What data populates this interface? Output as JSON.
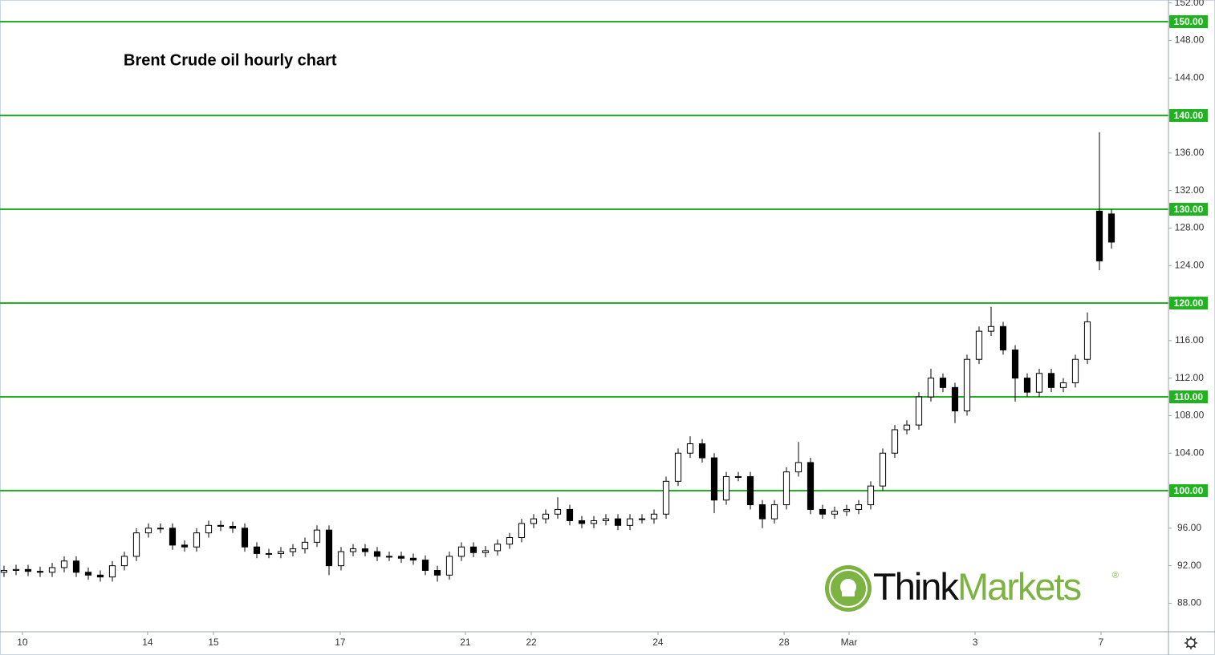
{
  "chart_data": {
    "type": "candlestick",
    "title": "Brent Crude oil hourly chart",
    "up_color": "#ffffff",
    "down_color": "#000000",
    "level_color": "#1fb41f",
    "x": [
      0,
      1,
      2,
      3,
      4,
      5,
      6,
      7,
      8,
      9,
      10,
      11,
      12,
      13,
      14,
      15,
      16,
      17,
      18,
      19,
      20,
      21,
      22,
      23,
      24,
      25,
      26,
      27,
      28,
      29,
      30,
      31,
      32,
      33,
      34,
      35,
      36,
      37,
      38,
      39,
      40,
      41,
      42,
      43,
      44,
      45,
      46,
      47,
      48,
      49,
      50,
      51,
      52,
      53,
      54,
      55,
      56,
      57,
      58,
      59,
      60,
      61,
      62,
      63,
      64,
      65,
      66,
      67,
      68,
      69,
      70,
      71,
      72,
      73,
      74,
      75,
      76,
      77,
      78,
      79,
      80,
      81,
      82,
      83,
      84,
      85,
      86,
      87,
      88,
      89,
      90,
      91,
      92
    ],
    "open": [
      91.3,
      91.5,
      91.6,
      91.4,
      91.3,
      91.8,
      92.5,
      91.3,
      91.0,
      90.8,
      92.0,
      93.0,
      95.5,
      96.0,
      96.0,
      94.2,
      94.0,
      95.5,
      96.3,
      96.2,
      96.0,
      94.0,
      93.3,
      93.3,
      93.5,
      93.8,
      94.5,
      95.8,
      92.0,
      93.5,
      93.8,
      93.5,
      93.0,
      93.0,
      92.8,
      92.6,
      91.5,
      91.0,
      93.0,
      94.0,
      93.4,
      93.6,
      94.3,
      95.0,
      96.5,
      97.0,
      97.5,
      98.0,
      96.8,
      96.5,
      96.8,
      97.0,
      96.3,
      97.0,
      97.0,
      97.5,
      101.0,
      104.0,
      105.0,
      103.5,
      99.0,
      101.5,
      101.5,
      98.5,
      97.0,
      98.5,
      102.0,
      103.0,
      98.0,
      97.5,
      97.8,
      98.0,
      98.5,
      100.5,
      104.0,
      106.5,
      107.0,
      110.0,
      112.0,
      111.0,
      108.5,
      114.0,
      117.0,
      117.5,
      115.0,
      112.0,
      110.5,
      112.5,
      111.0,
      111.5,
      114.0,
      129.8,
      129.5
    ],
    "high": [
      92.0,
      92.1,
      92.1,
      91.9,
      92.3,
      93.0,
      93.0,
      91.8,
      91.5,
      92.5,
      93.5,
      96.0,
      96.5,
      96.5,
      96.5,
      94.7,
      96.0,
      96.8,
      96.8,
      96.7,
      96.5,
      94.5,
      93.8,
      94.0,
      94.3,
      95.0,
      96.3,
      96.3,
      94.0,
      94.3,
      94.3,
      94.0,
      93.5,
      93.5,
      93.3,
      93.1,
      92.0,
      93.5,
      94.5,
      94.5,
      94.1,
      94.8,
      95.5,
      97.0,
      97.5,
      98.0,
      99.3,
      98.5,
      97.3,
      97.3,
      97.5,
      97.5,
      97.5,
      97.5,
      98.0,
      101.5,
      104.5,
      105.8,
      105.5,
      104.0,
      102.0,
      102.0,
      102.0,
      99.0,
      99.0,
      102.5,
      105.2,
      103.5,
      98.5,
      98.3,
      98.5,
      99.0,
      101.0,
      104.5,
      107.0,
      107.5,
      110.5,
      113.0,
      112.5,
      111.5,
      114.5,
      117.5,
      119.6,
      118.0,
      115.5,
      112.5,
      113.0,
      113.0,
      112.0,
      114.5,
      119.0,
      138.2,
      130.0
    ],
    "low": [
      90.8,
      91.0,
      90.9,
      90.8,
      90.8,
      91.3,
      90.8,
      90.5,
      90.3,
      90.3,
      91.5,
      92.5,
      95.0,
      95.5,
      93.7,
      93.5,
      93.5,
      95.0,
      95.7,
      95.5,
      93.5,
      92.8,
      92.8,
      92.8,
      93.0,
      93.3,
      94.0,
      91.0,
      91.5,
      93.0,
      93.0,
      92.5,
      92.5,
      92.3,
      92.1,
      91.0,
      90.3,
      90.5,
      92.5,
      92.9,
      92.9,
      93.1,
      93.8,
      94.5,
      96.0,
      96.5,
      97.0,
      96.3,
      96.0,
      96.0,
      96.3,
      95.8,
      95.8,
      96.5,
      96.5,
      97.0,
      100.5,
      103.5,
      103.0,
      97.6,
      98.5,
      101.0,
      98.0,
      96.0,
      96.5,
      98.0,
      101.5,
      97.5,
      97.0,
      97.0,
      97.3,
      97.5,
      98.0,
      100.0,
      103.5,
      106.0,
      106.5,
      109.5,
      110.5,
      107.2,
      108.0,
      113.5,
      116.5,
      114.5,
      109.5,
      110.0,
      110.0,
      110.5,
      110.5,
      111.0,
      113.5,
      123.5,
      125.8
    ],
    "close": [
      91.5,
      91.6,
      91.4,
      91.3,
      91.8,
      92.5,
      91.3,
      91.0,
      90.8,
      92.0,
      93.0,
      95.5,
      96.0,
      96.0,
      94.2,
      94.0,
      95.5,
      96.3,
      96.2,
      96.0,
      94.0,
      93.3,
      93.3,
      93.5,
      93.8,
      94.5,
      95.8,
      92.0,
      93.5,
      93.8,
      93.5,
      93.0,
      93.0,
      92.8,
      92.6,
      91.5,
      91.0,
      93.0,
      94.0,
      93.4,
      93.6,
      94.3,
      95.0,
      96.5,
      97.0,
      97.5,
      98.0,
      96.8,
      96.5,
      96.8,
      97.0,
      96.3,
      97.0,
      97.0,
      97.5,
      101.0,
      104.0,
      105.0,
      103.5,
      99.0,
      101.5,
      101.5,
      98.5,
      97.0,
      98.5,
      102.0,
      103.0,
      98.0,
      97.5,
      97.8,
      98.0,
      98.5,
      100.5,
      104.0,
      106.5,
      107.0,
      110.0,
      112.0,
      111.0,
      108.5,
      114.0,
      117.0,
      117.5,
      115.0,
      112.0,
      110.5,
      112.5,
      111.0,
      111.5,
      114.0,
      118.0,
      124.5,
      126.5
    ],
    "xlim": [
      -0.333,
      96.667
    ],
    "xticks": [
      {
        "value": 1.53,
        "label": "10"
      },
      {
        "value": 11.93,
        "label": "14"
      },
      {
        "value": 17.4,
        "label": "15"
      },
      {
        "value": 27.93,
        "label": "17"
      },
      {
        "value": 38.33,
        "label": "21"
      },
      {
        "value": 43.8,
        "label": "22"
      },
      {
        "value": 54.33,
        "label": "24"
      },
      {
        "value": 64.8,
        "label": "28"
      },
      {
        "value": 70.2,
        "label": "Mar"
      },
      {
        "value": 80.67,
        "label": "3"
      },
      {
        "value": 91.13,
        "label": "7"
      }
    ],
    "ylim": [
      84.96,
      152.31
    ],
    "yticks": [
      {
        "value": 88,
        "label": "88.00"
      },
      {
        "value": 92,
        "label": "92.00"
      },
      {
        "value": 96,
        "label": "96.00"
      },
      {
        "value": 104,
        "label": "104.00"
      },
      {
        "value": 108,
        "label": "108.00"
      },
      {
        "value": 112,
        "label": "112.00"
      },
      {
        "value": 116,
        "label": "116.00"
      },
      {
        "value": 124,
        "label": "124.00"
      },
      {
        "value": 128,
        "label": "128.00"
      },
      {
        "value": 132,
        "label": "132.00"
      },
      {
        "value": 136,
        "label": "136.00"
      },
      {
        "value": 144,
        "label": "144.00"
      },
      {
        "value": 148,
        "label": "148.00"
      },
      {
        "value": 152,
        "label": "152.00"
      }
    ],
    "levels": [
      {
        "value": 100,
        "label": "100.00"
      },
      {
        "value": 110,
        "label": "110.00"
      },
      {
        "value": 120,
        "label": "120.00"
      },
      {
        "value": 130,
        "label": "130.00"
      },
      {
        "value": 140,
        "label": "140.00"
      },
      {
        "value": 150,
        "label": "150.00"
      }
    ],
    "logo": {
      "first": "Think",
      "second": "Markets",
      "mark": "®"
    }
  }
}
